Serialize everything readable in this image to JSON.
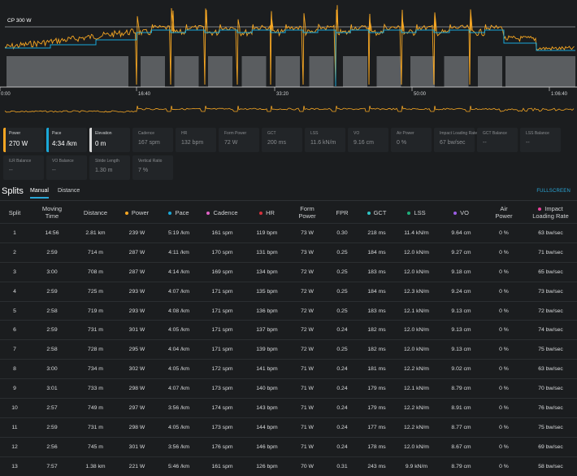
{
  "chart": {
    "cp_label": "CP 300 W",
    "time_ticks": [
      "0:00",
      "16:40",
      "33:20",
      "50:00",
      "1:06:40"
    ],
    "colors": {
      "power": "#f5a623",
      "pace": "#1aa8d8",
      "cp_line": "#9a9ea2",
      "elevation": "#5c5f62"
    }
  },
  "metrics": [
    {
      "label": "Power",
      "value": "270 W",
      "active": true,
      "color": "#f5a623"
    },
    {
      "label": "Pace",
      "value": "4:34 /km",
      "active": true,
      "color": "#1aa8d8"
    },
    {
      "label": "Elevation",
      "value": "0 m",
      "active": true,
      "color": "#d8d8d8"
    },
    {
      "label": "Cadence",
      "value": "167 spm",
      "active": false
    },
    {
      "label": "HR",
      "value": "132 bpm",
      "active": false
    },
    {
      "label": "Form Power",
      "value": "72 W",
      "active": false
    },
    {
      "label": "GCT",
      "value": "200 ms",
      "active": false
    },
    {
      "label": "LSS",
      "value": "11.6 kN/m",
      "active": false
    },
    {
      "label": "VO",
      "value": "9.16 cm",
      "active": false
    },
    {
      "label": "Air Power",
      "value": "0 %",
      "active": false
    },
    {
      "label": "Impact Loading Rate",
      "value": "67 bw/sec",
      "active": false
    },
    {
      "label": "GCT Balance",
      "value": "--",
      "active": false
    },
    {
      "label": "LSS Balance",
      "value": "--",
      "active": false
    },
    {
      "label": "ILR Balance",
      "value": "--",
      "active": false
    },
    {
      "label": "VO Balance",
      "value": "--",
      "active": false
    },
    {
      "label": "Stride Length",
      "value": "1.30 m",
      "active": false
    },
    {
      "label": "Vertical Ratio",
      "value": "7 %",
      "active": false
    }
  ],
  "splits": {
    "title": "Splits",
    "tabs": [
      "Manual",
      "Distance"
    ],
    "fullscreen": "FULLSCREEN",
    "columns": [
      {
        "label": "Split"
      },
      {
        "label": "Moving",
        "label2": "Time"
      },
      {
        "label": "Distance"
      },
      {
        "label": "Power",
        "color": "#f5a623"
      },
      {
        "label": "Pace",
        "color": "#1aa8d8"
      },
      {
        "label": "Cadence",
        "color": "#e062c6"
      },
      {
        "label": "HR",
        "color": "#d6323c"
      },
      {
        "label": "Form",
        "label2": "Power"
      },
      {
        "label": "FPR"
      },
      {
        "label": "GCT",
        "color": "#2fc4c4"
      },
      {
        "label": "LSS",
        "color": "#1fae7a"
      },
      {
        "label": "VO",
        "color": "#9b5de5"
      },
      {
        "label": "Air",
        "label2": "Power"
      },
      {
        "label": "Impact",
        "label2": "Loading Rate",
        "color": "#e8419a"
      }
    ],
    "rows": [
      [
        "1",
        "14:56",
        "2.81 km",
        "239 W",
        "5:19 /km",
        "161 spm",
        "119 bpm",
        "73 W",
        "0.30",
        "218 ms",
        "11.4 kN/m",
        "9.64 cm",
        "0 %",
        "63 bw/sec"
      ],
      [
        "2",
        "2:59",
        "714 m",
        "287 W",
        "4:11 /km",
        "170 spm",
        "131 bpm",
        "73 W",
        "0.25",
        "184 ms",
        "12.0 kN/m",
        "9.27 cm",
        "0 %",
        "71 bw/sec"
      ],
      [
        "3",
        "3:00",
        "708 m",
        "287 W",
        "4:14 /km",
        "169 spm",
        "134 bpm",
        "72 W",
        "0.25",
        "183 ms",
        "12.0 kN/m",
        "9.18 cm",
        "0 %",
        "65 bw/sec"
      ],
      [
        "4",
        "2:59",
        "725 m",
        "293 W",
        "4:07 /km",
        "171 spm",
        "135 bpm",
        "72 W",
        "0.25",
        "184 ms",
        "12.3 kN/m",
        "9.24 cm",
        "0 %",
        "73 bw/sec"
      ],
      [
        "5",
        "2:58",
        "719 m",
        "293 W",
        "4:08 /km",
        "171 spm",
        "136 bpm",
        "72 W",
        "0.25",
        "183 ms",
        "12.1 kN/m",
        "9.13 cm",
        "0 %",
        "72 bw/sec"
      ],
      [
        "6",
        "2:59",
        "731 m",
        "301 W",
        "4:05 /km",
        "171 spm",
        "137 bpm",
        "72 W",
        "0.24",
        "182 ms",
        "12.0 kN/m",
        "9.13 cm",
        "0 %",
        "74 bw/sec"
      ],
      [
        "7",
        "2:58",
        "728 m",
        "295 W",
        "4:04 /km",
        "171 spm",
        "139 bpm",
        "72 W",
        "0.25",
        "182 ms",
        "12.0 kN/m",
        "9.13 cm",
        "0 %",
        "75 bw/sec"
      ],
      [
        "8",
        "3:00",
        "734 m",
        "302 W",
        "4:05 /km",
        "172 spm",
        "141 bpm",
        "71 W",
        "0.24",
        "181 ms",
        "12.2 kN/m",
        "9.02 cm",
        "0 %",
        "63 bw/sec"
      ],
      [
        "9",
        "3:01",
        "733 m",
        "298 W",
        "4:07 /km",
        "173 spm",
        "140 bpm",
        "71 W",
        "0.24",
        "179 ms",
        "12.1 kN/m",
        "8.79 cm",
        "0 %",
        "70 bw/sec"
      ],
      [
        "10",
        "2:57",
        "749 m",
        "297 W",
        "3:56 /km",
        "174 spm",
        "143 bpm",
        "71 W",
        "0.24",
        "179 ms",
        "12.2 kN/m",
        "8.91 cm",
        "0 %",
        "76 bw/sec"
      ],
      [
        "11",
        "2:59",
        "731 m",
        "298 W",
        "4:05 /km",
        "173 spm",
        "144 bpm",
        "71 W",
        "0.24",
        "177 ms",
        "12.2 kN/m",
        "8.77 cm",
        "0 %",
        "75 bw/sec"
      ],
      [
        "12",
        "2:56",
        "745 m",
        "301 W",
        "3:56 /km",
        "176 spm",
        "146 bpm",
        "71 W",
        "0.24",
        "178 ms",
        "12.0 kN/m",
        "8.67 cm",
        "0 %",
        "69 bw/sec"
      ],
      [
        "13",
        "7:57",
        "1.38 km",
        "221 W",
        "5:46 /km",
        "161 spm",
        "126 bpm",
        "70 W",
        "0.31",
        "243 ms",
        "9.9 kN/m",
        "8.79 cm",
        "0 %",
        "58 bw/sec"
      ]
    ]
  }
}
